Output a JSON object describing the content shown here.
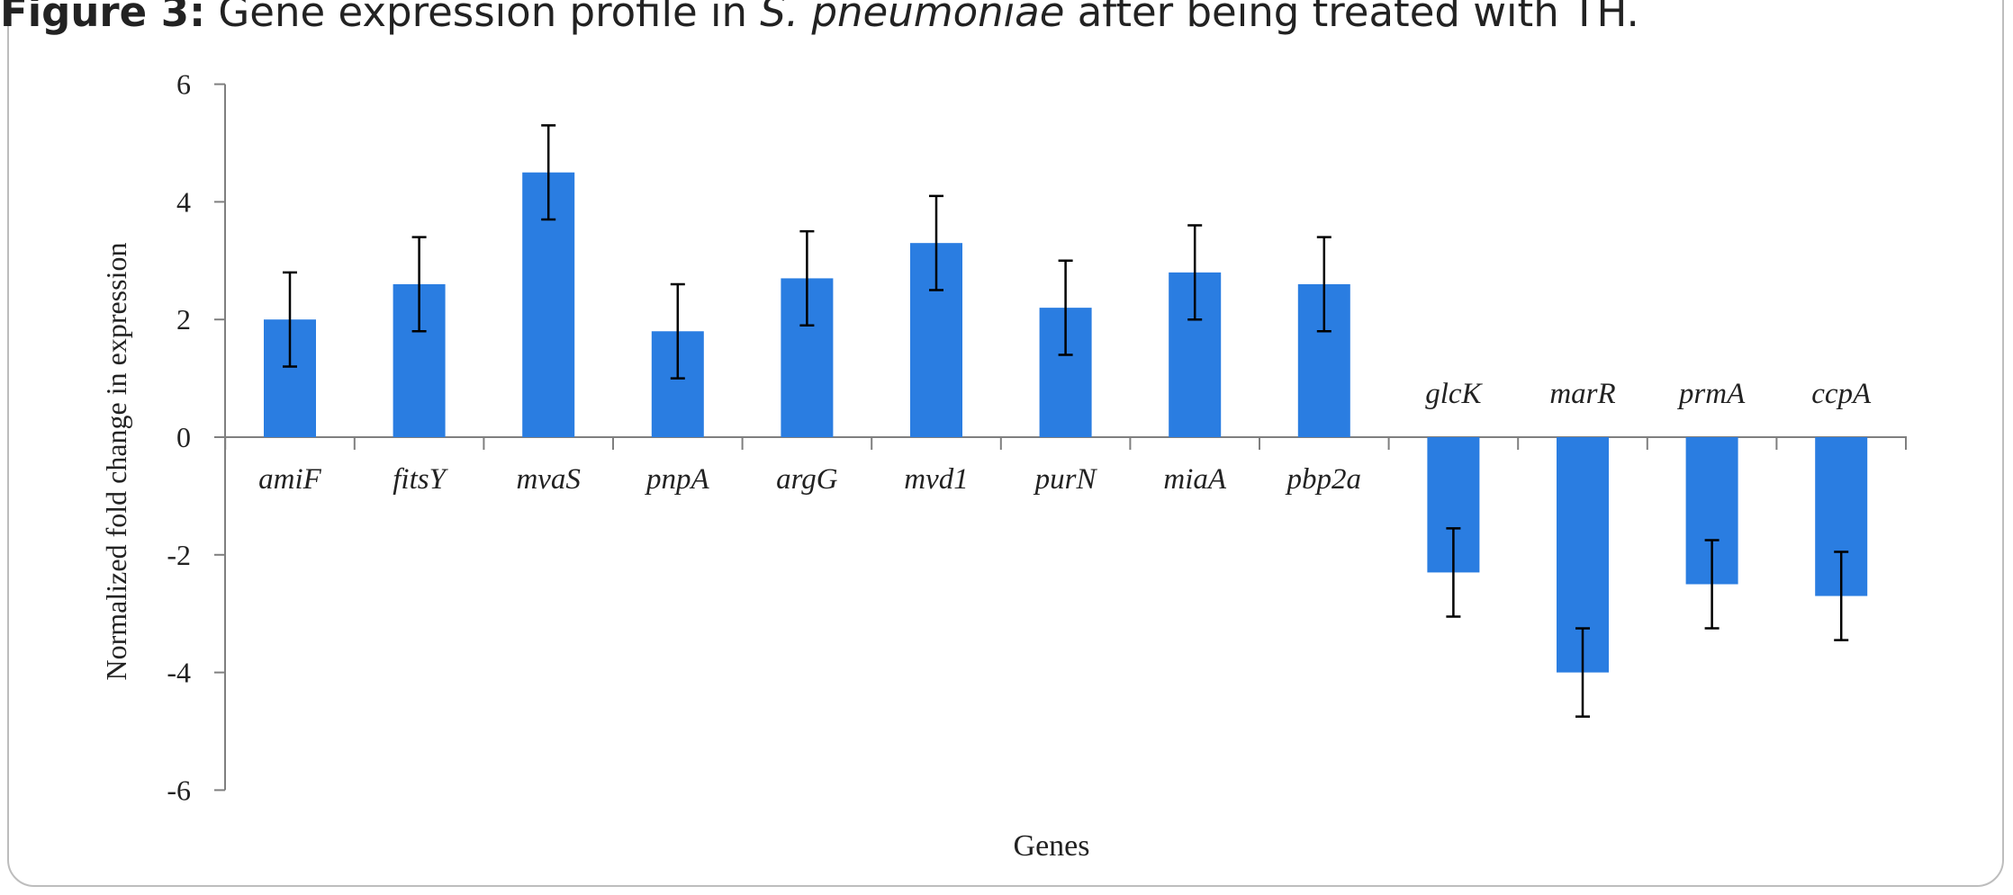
{
  "caption": {
    "label": "Figure 3:",
    "text_before": "Gene expression profile in ",
    "species": "S. pneumoniae",
    "text_after": " after being treated with TH."
  },
  "colors": {
    "bar": "#2a7de1",
    "axis": "#7f7f7f",
    "error": "#000000",
    "text": "#222222"
  },
  "chart_data": {
    "type": "bar",
    "title": "",
    "xlabel": "Genes",
    "ylabel": "Normalized fold change in expression",
    "ylim": [
      -6,
      6
    ],
    "yticks": [
      6,
      4,
      2,
      0,
      -2,
      -4,
      -6
    ],
    "ytick_labels": [
      "6",
      "4",
      "2",
      "0",
      "-2",
      "-4",
      "-6"
    ],
    "categories": [
      "amiF",
      "fitsY",
      "mvaS",
      "pnpA",
      "argG",
      "mvd1",
      "purN",
      "miaA",
      "pbp2a",
      "glcK",
      "marR",
      "prmA",
      "ccpA"
    ],
    "values": [
      2.0,
      2.6,
      4.5,
      1.8,
      2.7,
      3.3,
      2.2,
      2.8,
      2.6,
      -2.3,
      -4.0,
      -2.5,
      -2.7
    ],
    "error": [
      0.8,
      0.8,
      0.8,
      0.8,
      0.8,
      0.8,
      0.8,
      0.8,
      0.8,
      0.75,
      0.75,
      0.75,
      0.75
    ],
    "grid": false,
    "legend": "none"
  }
}
